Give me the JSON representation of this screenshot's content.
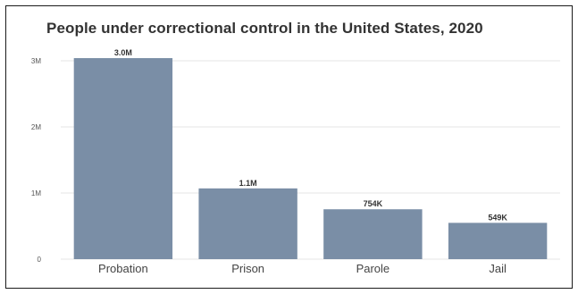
{
  "chart_data": {
    "type": "bar",
    "title": "People under correctional control in the United States, 2020",
    "xlabel": "",
    "ylabel": "",
    "categories": [
      "Probation",
      "Prison",
      "Parole",
      "Jail"
    ],
    "values": [
      3040000,
      1070000,
      754000,
      549000
    ],
    "data_labels": [
      "3.0M",
      "1.1M",
      "754K",
      "549K"
    ],
    "ylim": [
      0,
      3000000
    ],
    "yticks": [
      0,
      1000000,
      2000000,
      3000000
    ],
    "ytick_labels": [
      "0",
      "1M",
      "2M",
      "3M"
    ],
    "grid": true,
    "legend": "none",
    "colors": {
      "bar": "#7a8ea6",
      "grid": "#e6e6e6",
      "title": "#333333"
    }
  }
}
